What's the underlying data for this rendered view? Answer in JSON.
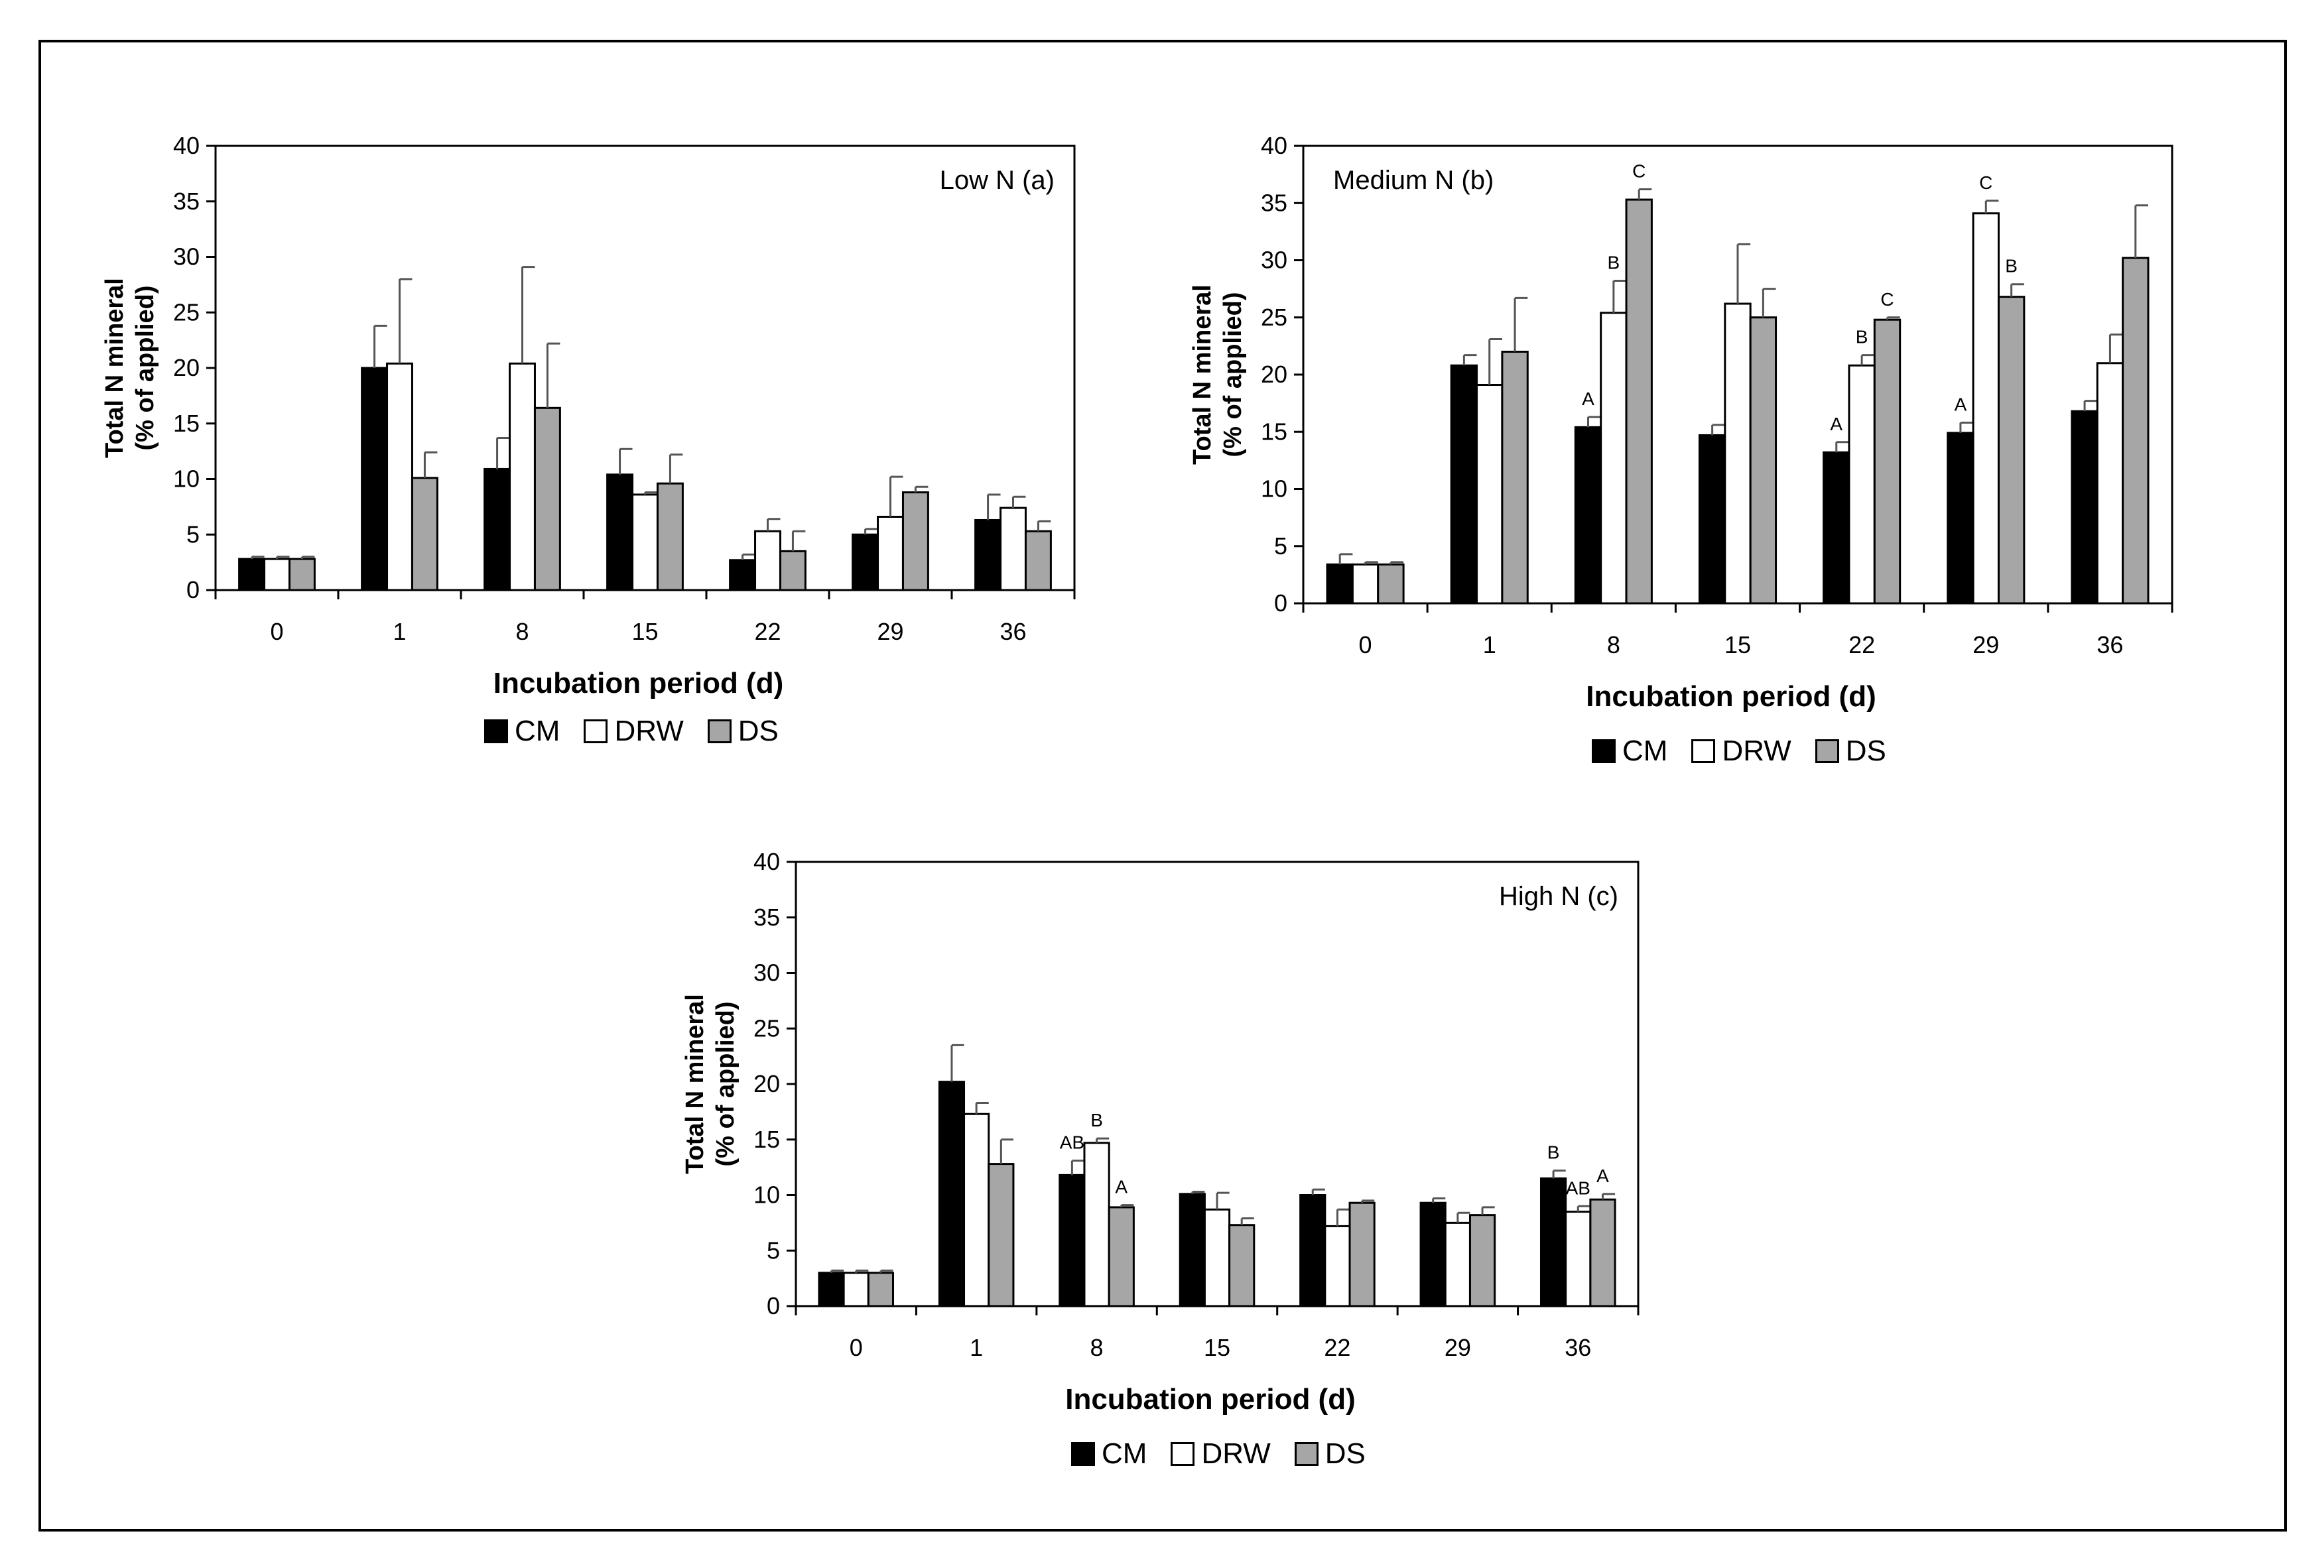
{
  "chart_data": [
    {
      "type": "bar",
      "panel_label": "Low N (a)",
      "ylabel": [
        "Total  N mineral",
        "(% of applied)"
      ],
      "xlabel": "Incubation period (d)",
      "ylim": [
        0,
        40
      ],
      "yticks": [
        0,
        5,
        10,
        15,
        20,
        25,
        30,
        35,
        40
      ],
      "categories": [
        "0",
        "1",
        "8",
        "15",
        "22",
        "29",
        "36"
      ],
      "series": [
        {
          "name": "CM",
          "color": "#000000",
          "values": [
            2.8,
            20.0,
            10.9,
            10.4,
            2.7,
            5.0,
            6.3
          ],
          "errors": [
            0.2,
            3.8,
            2.8,
            2.3,
            0.5,
            0.5,
            2.3
          ],
          "letters": [
            "",
            "",
            "",
            "",
            "",
            "",
            ""
          ]
        },
        {
          "name": "DRW",
          "color": "#ffffff",
          "values": [
            2.8,
            20.4,
            20.4,
            8.6,
            5.3,
            6.6,
            7.4
          ],
          "errors": [
            0.2,
            7.6,
            8.7,
            0.2,
            1.1,
            3.6,
            1.0
          ],
          "letters": [
            "",
            "",
            "",
            "",
            "",
            "",
            ""
          ]
        },
        {
          "name": "DS",
          "color": "#a6a6a6",
          "values": [
            2.8,
            10.1,
            16.4,
            9.6,
            3.5,
            8.8,
            5.3
          ],
          "errors": [
            0.2,
            2.3,
            5.8,
            2.6,
            1.8,
            0.5,
            0.9
          ],
          "letters": [
            "",
            "",
            "",
            "",
            "",
            "",
            ""
          ]
        }
      ],
      "legend": [
        "CM",
        "DRW",
        "DS"
      ]
    },
    {
      "type": "bar",
      "panel_label": "Medium N (b)",
      "ylabel": [
        "Total  N mineral",
        "(% of applied)"
      ],
      "xlabel": "Incubation period (d)",
      "ylim": [
        0,
        40
      ],
      "yticks": [
        0,
        5,
        10,
        15,
        20,
        25,
        30,
        35,
        40
      ],
      "categories": [
        "0",
        "1",
        "8",
        "15",
        "22",
        "29",
        "36"
      ],
      "series": [
        {
          "name": "CM",
          "color": "#000000",
          "values": [
            3.4,
            20.8,
            15.4,
            14.7,
            13.2,
            14.9,
            16.8
          ],
          "errors": [
            0.9,
            0.9,
            0.9,
            0.9,
            0.9,
            0.9,
            0.9
          ],
          "letters": [
            "",
            "",
            "A",
            "",
            "A",
            "A",
            ""
          ]
        },
        {
          "name": "DRW",
          "color": "#ffffff",
          "values": [
            3.4,
            19.1,
            25.4,
            26.2,
            20.8,
            34.1,
            21.0
          ],
          "errors": [
            0.2,
            4.0,
            2.8,
            5.2,
            0.9,
            1.1,
            2.5
          ],
          "letters": [
            "",
            "",
            "B",
            "",
            "B",
            "C",
            ""
          ]
        },
        {
          "name": "DS",
          "color": "#a6a6a6",
          "values": [
            3.4,
            22.0,
            35.3,
            25.0,
            24.8,
            26.8,
            30.2
          ],
          "errors": [
            0.2,
            4.7,
            0.9,
            2.5,
            0.2,
            1.1,
            4.6
          ],
          "letters": [
            "",
            "",
            "C",
            "",
            "C",
            "B",
            ""
          ]
        }
      ],
      "legend": [
        "CM",
        "DRW",
        "DS"
      ]
    },
    {
      "type": "bar",
      "panel_label": "High N (c)",
      "ylabel": [
        "Total  N mineral",
        "(% of applied)"
      ],
      "xlabel": "Incubation period (d)",
      "ylim": [
        0,
        40
      ],
      "yticks": [
        0,
        5,
        10,
        15,
        20,
        25,
        30,
        35,
        40
      ],
      "categories": [
        "0",
        "1",
        "8",
        "15",
        "22",
        "29",
        "36"
      ],
      "series": [
        {
          "name": "CM",
          "color": "#000000",
          "values": [
            3.0,
            20.2,
            11.8,
            10.1,
            10.0,
            9.3,
            11.5
          ],
          "errors": [
            0.2,
            3.3,
            1.3,
            0.2,
            0.5,
            0.4,
            0.7
          ],
          "letters": [
            "",
            "",
            "AB",
            "",
            "",
            "",
            "B"
          ]
        },
        {
          "name": "DRW",
          "color": "#ffffff",
          "values": [
            3.0,
            17.3,
            14.7,
            8.7,
            7.2,
            7.5,
            8.5
          ],
          "errors": [
            0.2,
            1.0,
            0.4,
            1.5,
            1.5,
            0.9,
            0.5
          ],
          "letters": [
            "",
            "",
            "B",
            "",
            "",
            "",
            "AB"
          ]
        },
        {
          "name": "DS",
          "color": "#a6a6a6",
          "values": [
            3.0,
            12.8,
            8.9,
            7.3,
            9.3,
            8.2,
            9.6
          ],
          "errors": [
            0.2,
            2.2,
            0.2,
            0.6,
            0.2,
            0.7,
            0.5
          ],
          "letters": [
            "",
            "",
            "A",
            "",
            "",
            "",
            "A"
          ]
        }
      ],
      "legend": [
        "CM",
        "DRW",
        "DS"
      ]
    }
  ]
}
